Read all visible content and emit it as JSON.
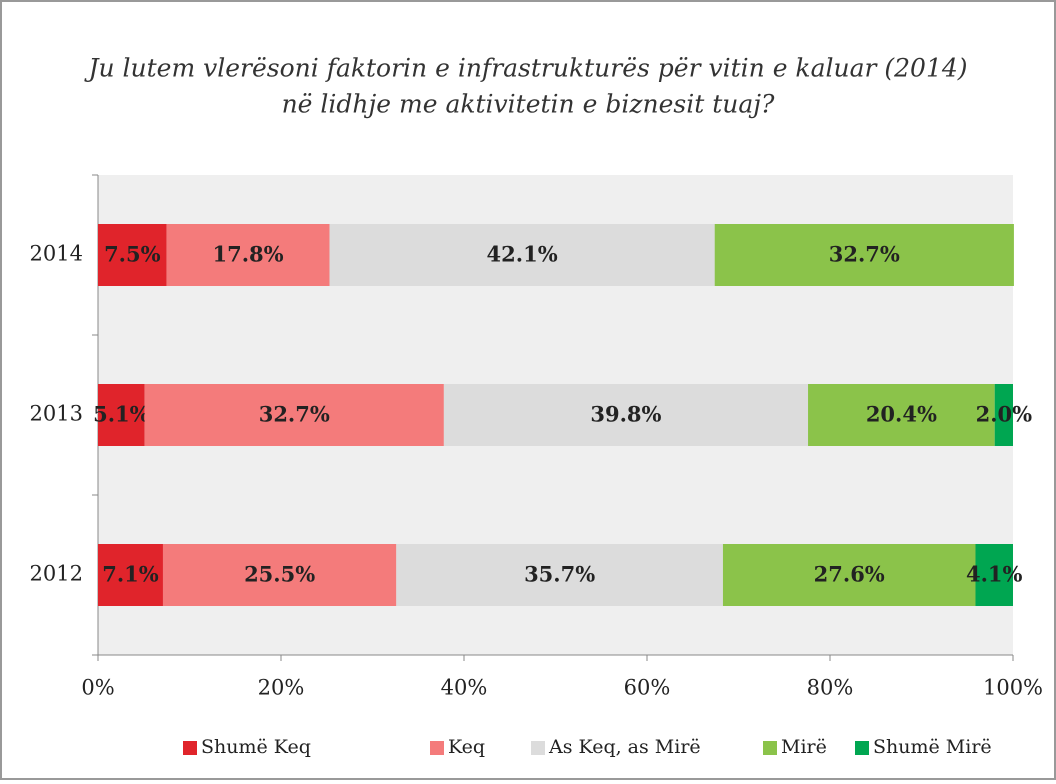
{
  "chart_data": {
    "type": "stacked-bar-horizontal",
    "title": [
      "Ju lutem vlerësoni faktorin e infrastrukturës për vitin e kaluar (2014)",
      "në lidhje me aktivitetin e biznesit tuaj?"
    ],
    "categories": [
      "2014",
      "2013",
      "2012"
    ],
    "series": [
      {
        "name": "Shumë Keq",
        "color": "#e0242b",
        "values": [
          7.5,
          5.1,
          7.1
        ],
        "value_labels": [
          "7.5%",
          "5.1%",
          "7.1%"
        ]
      },
      {
        "name": "Keq",
        "color": "#f47b7b",
        "values": [
          17.8,
          32.7,
          25.5
        ],
        "value_labels": [
          "17.8%",
          "32.7%",
          "25.5%"
        ]
      },
      {
        "name": "As Keq, as Mirë",
        "color": "#dcdcdc",
        "values": [
          42.1,
          39.8,
          35.7
        ],
        "value_labels": [
          "42.1%",
          "39.8%",
          "35.7%"
        ]
      },
      {
        "name": "Mirë",
        "color": "#8bc34a",
        "values": [
          32.7,
          20.4,
          27.6
        ],
        "value_labels": [
          "32.7%",
          "20.4%",
          "27.6%"
        ]
      },
      {
        "name": "Shumë Mirë",
        "color": "#00a651",
        "values": [
          null,
          2.0,
          4.1
        ],
        "value_labels": [
          null,
          "2.0%",
          "4.1%"
        ]
      }
    ],
    "xlim": [
      0,
      100
    ],
    "xticks": [
      {
        "value": 0,
        "label": "0%"
      },
      {
        "value": 20,
        "label": "20%"
      },
      {
        "value": 40,
        "label": "40%"
      },
      {
        "value": 60,
        "label": "60%"
      },
      {
        "value": 80,
        "label": "80%"
      },
      {
        "value": 100,
        "label": "100%"
      }
    ],
    "legend": "bottom"
  }
}
